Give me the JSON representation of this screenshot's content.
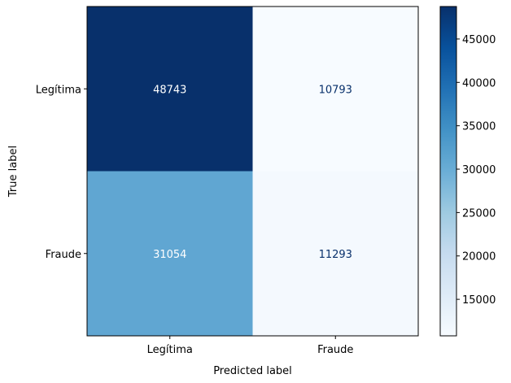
{
  "chart_data": {
    "type": "heatmap",
    "xlabel": "Predicted label",
    "ylabel": "True label",
    "x_categories": [
      "Legítima",
      "Fraude"
    ],
    "y_categories": [
      "Legítima",
      "Fraude"
    ],
    "values": [
      [
        48743,
        10793
      ],
      [
        31054,
        11293
      ]
    ],
    "colormap": "Blues",
    "colorbar": {
      "ticks": [
        15000,
        20000,
        25000,
        30000,
        35000,
        40000,
        45000
      ],
      "range": [
        10793,
        48743
      ]
    },
    "colors": {
      "low": "#f7fbff",
      "high": "#08306b",
      "text_on_dark": "#ffffff",
      "text_on_light": "#08306b"
    }
  }
}
